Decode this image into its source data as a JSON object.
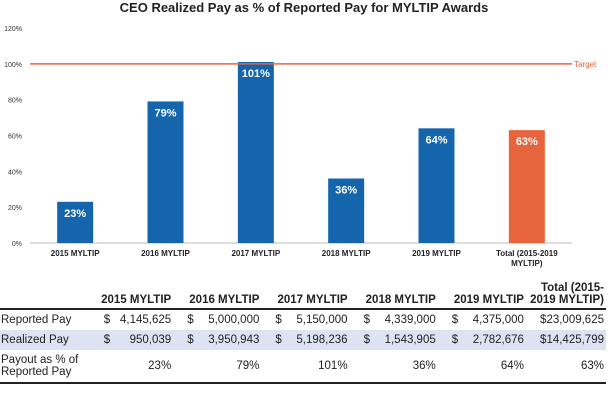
{
  "chart_data": {
    "type": "bar",
    "title": "CEO Realized Pay as % of Reported Pay for MYLTIP Awards",
    "categories": [
      "2015 MYLTIP",
      "2016 MYLTIP",
      "2017 MYLTIP",
      "2018 MYLTIP",
      "2019 MYLTIP",
      "Total (2015-2019 MYLTIP)"
    ],
    "values": [
      23,
      79,
      101,
      36,
      64,
      63
    ],
    "data_labels": [
      "23%",
      "79%",
      "101%",
      "36%",
      "64%",
      "63%"
    ],
    "colors": [
      "#1565ac",
      "#1565ac",
      "#1565ac",
      "#1565ac",
      "#1565ac",
      "#e8643c"
    ],
    "ylim": [
      0,
      120
    ],
    "yticks": [
      0,
      20,
      40,
      60,
      80,
      100,
      120
    ],
    "ytick_labels": [
      "0%",
      "20%",
      "40%",
      "60%",
      "80%",
      "100%",
      "120%"
    ],
    "target": {
      "value": 100,
      "label": "Target",
      "color": "#e8643c"
    },
    "xlabel": "",
    "ylabel": ""
  },
  "table": {
    "headers": [
      "",
      "2015 MYLTIP",
      "2016 MYLTIP",
      "2017 MYLTIP",
      "2018 MYLTIP",
      "2019 MYLTIP",
      "Total (2015-2019 MYLTIP)"
    ],
    "rows": [
      {
        "label": "Reported Pay",
        "currency": "$",
        "values": [
          "4,145,625",
          "5,000,000",
          "5,150,000",
          "4,339,000",
          "4,375,000",
          "23,009,625"
        ]
      },
      {
        "label": "Realized Pay",
        "currency": "$",
        "values": [
          "950,039",
          "3,950,943",
          "5,198,236",
          "1,543,905",
          "2,782,676",
          "14,425,799"
        ]
      },
      {
        "label": "Payout as % of Reported Pay",
        "currency": "",
        "values": [
          "23%",
          "79%",
          "101%",
          "36%",
          "64%",
          "63%"
        ]
      }
    ]
  }
}
